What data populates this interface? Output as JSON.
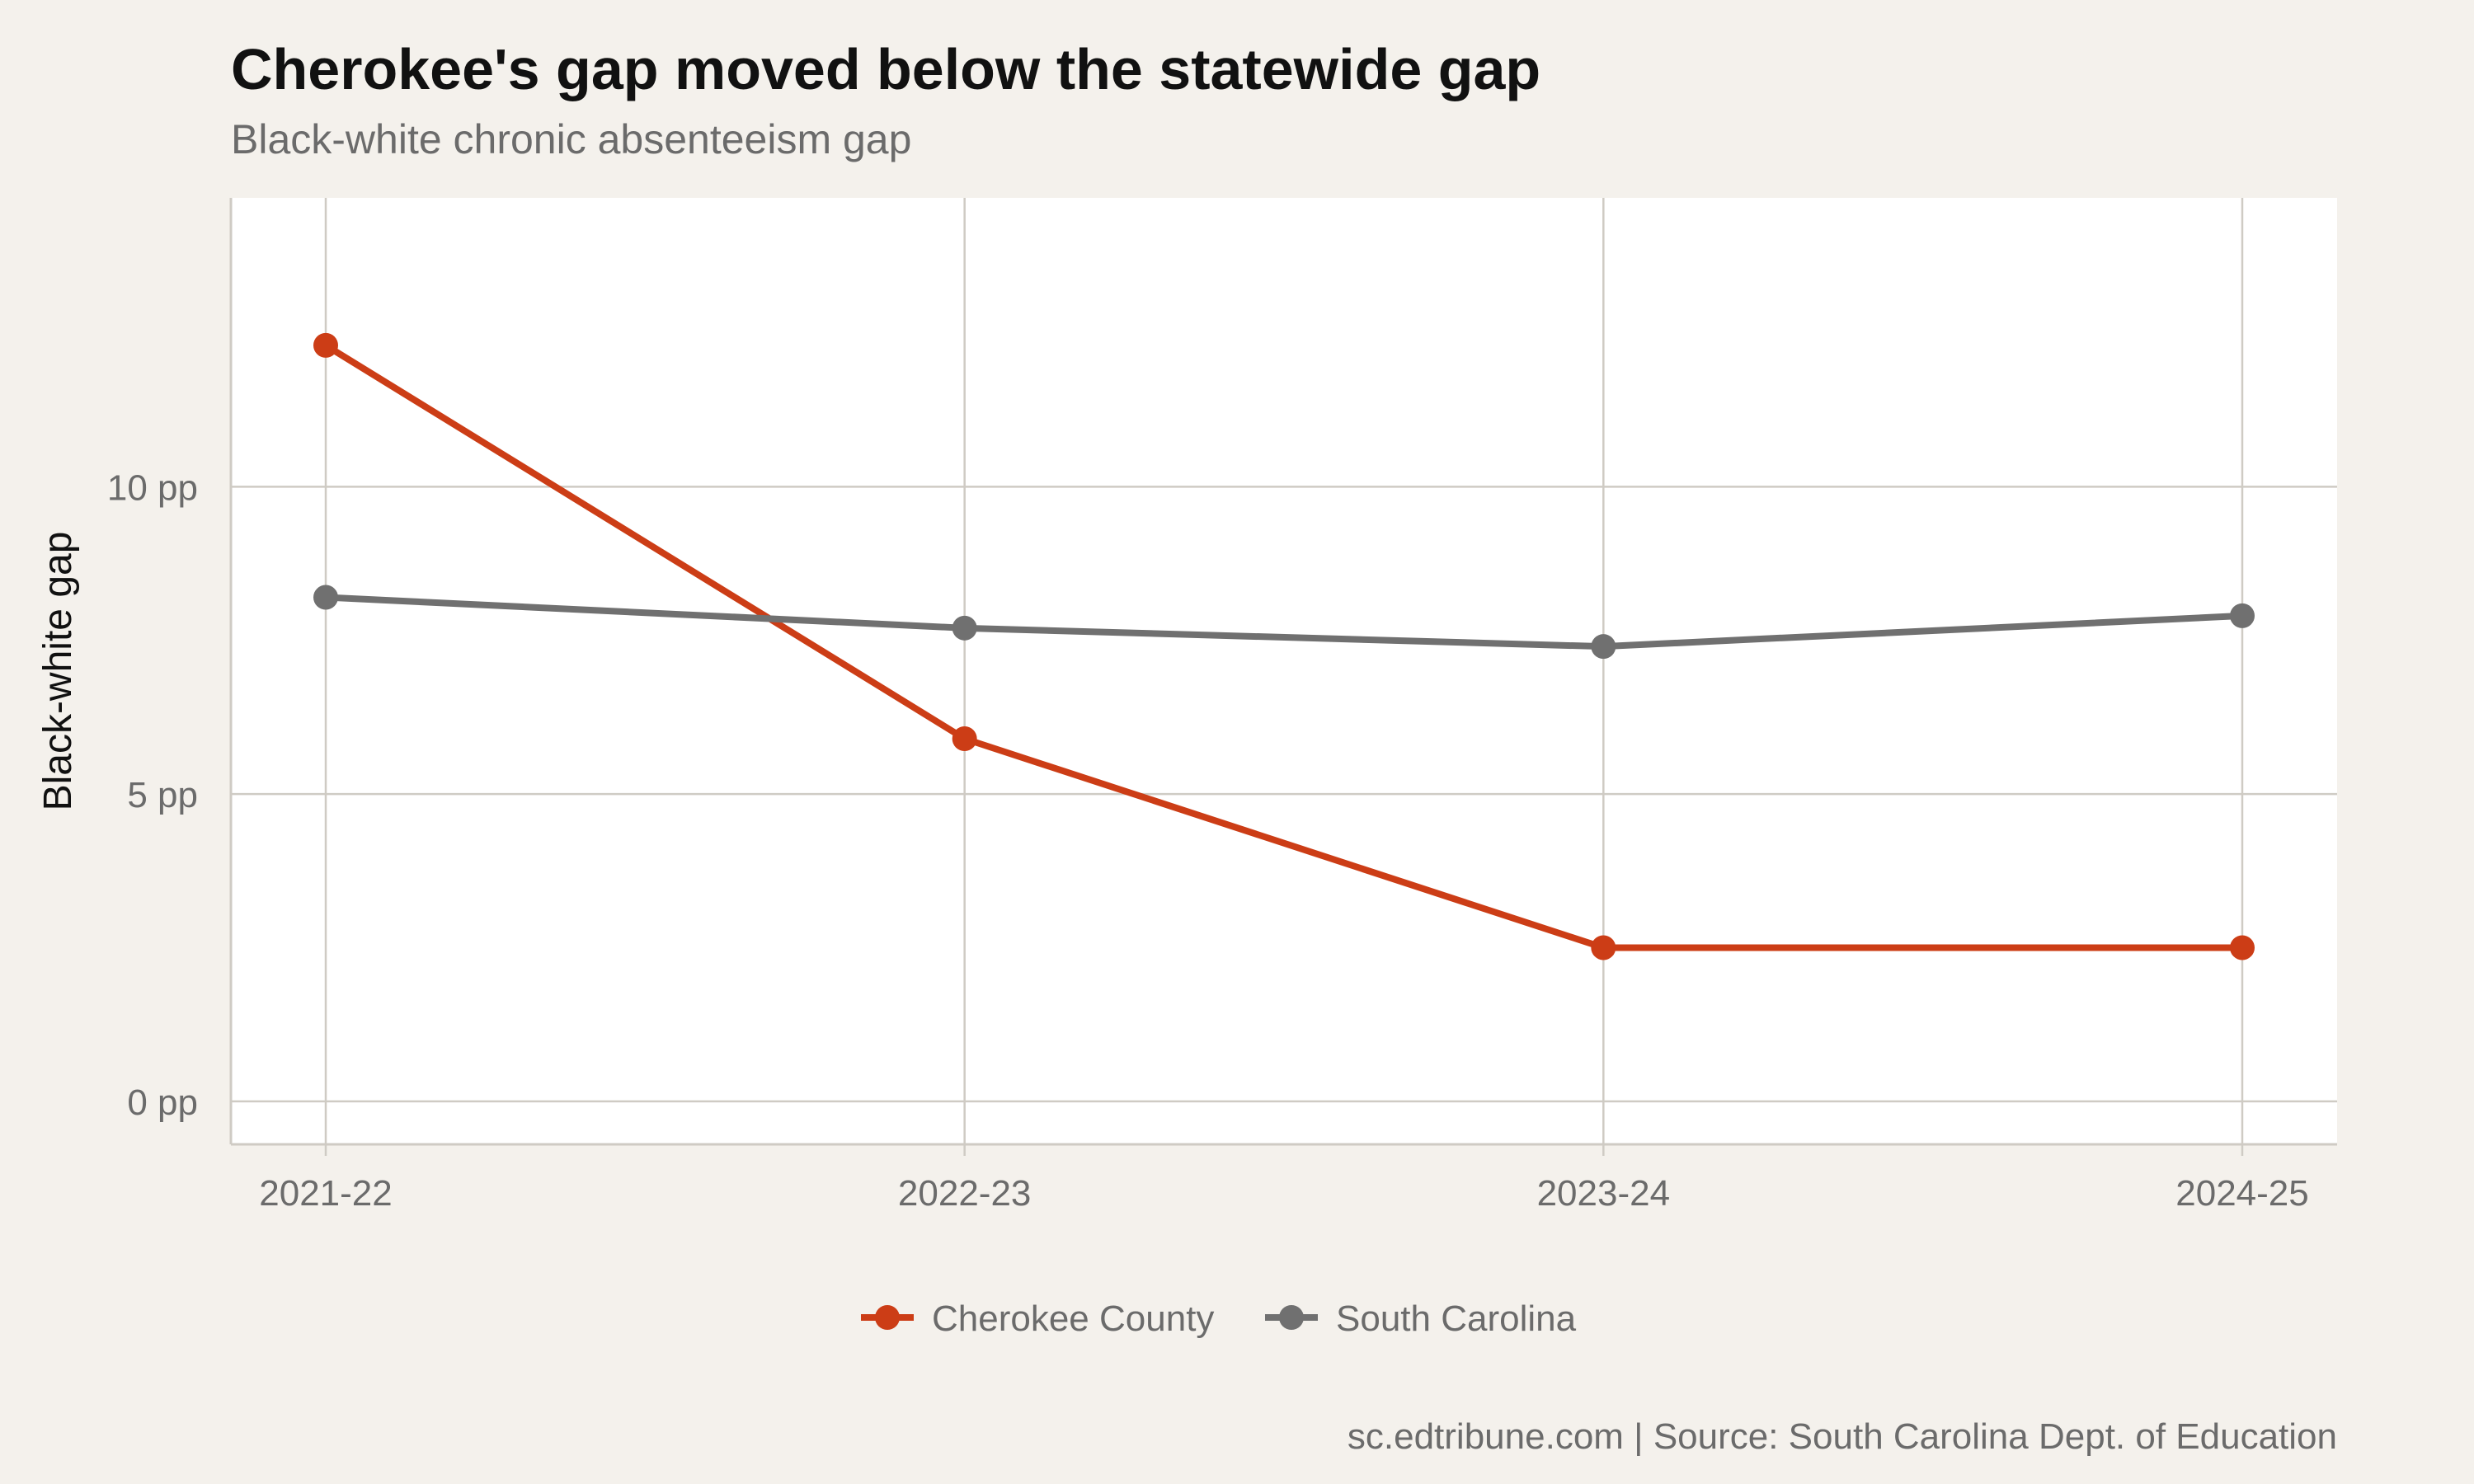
{
  "chart_data": {
    "type": "line",
    "title": "Cherokee's gap moved below the statewide gap",
    "subtitle": "Black-white chronic absenteeism gap",
    "caption": "sc.edtribune.com | Source: South Carolina Dept. of Education",
    "xlabel": "",
    "ylabel": "Black-white gap",
    "categories": [
      "2021-22",
      "2022-23",
      "2023-24",
      "2024-25"
    ],
    "y_ticks": [
      {
        "value": 0,
        "label": "0 pp"
      },
      {
        "value": 5,
        "label": "5 pp"
      },
      {
        "value": 10,
        "label": "10 pp"
      }
    ],
    "ylim": [
      -0.7,
      14.7
    ],
    "grid": true,
    "legend_position": "bottom",
    "series": [
      {
        "name": "Cherokee County",
        "color": "#cc3d16",
        "values": [
          12.3,
          5.9,
          2.5,
          2.5
        ]
      },
      {
        "name": "South Carolina",
        "color": "#707070",
        "values": [
          8.2,
          7.7,
          7.4,
          7.9
        ]
      }
    ],
    "colors": {
      "panel": "#ffffff",
      "background": "#f4f1ec",
      "grid": "#cfcbc4",
      "text": "#6b6b6b"
    }
  }
}
